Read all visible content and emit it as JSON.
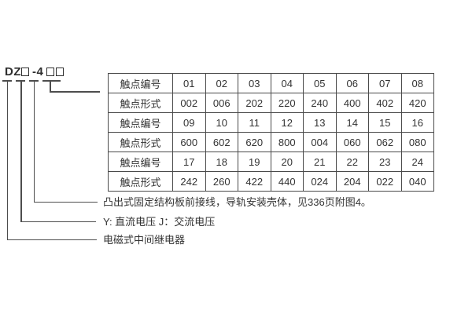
{
  "model": {
    "prefix": "DZ",
    "dash_number": "-4"
  },
  "table": {
    "rows": [
      {
        "label": "触点编号",
        "values": [
          "01",
          "02",
          "03",
          "04",
          "05",
          "06",
          "07",
          "08"
        ]
      },
      {
        "label": "触点形式",
        "values": [
          "002",
          "006",
          "202",
          "220",
          "240",
          "400",
          "402",
          "420"
        ]
      },
      {
        "label": "触点编号",
        "values": [
          "09",
          "10",
          "11",
          "12",
          "13",
          "14",
          "15",
          "16"
        ]
      },
      {
        "label": "触点形式",
        "values": [
          "600",
          "602",
          "620",
          "800",
          "004",
          "060",
          "062",
          "080"
        ]
      },
      {
        "label": "触点编号",
        "values": [
          "17",
          "18",
          "19",
          "20",
          "21",
          "22",
          "23",
          "24"
        ]
      },
      {
        "label": "触点形式",
        "values": [
          "242",
          "260",
          "422",
          "440",
          "024",
          "204",
          "022",
          "040"
        ]
      }
    ]
  },
  "annotations": [
    {
      "text": "凸出式固定结构板前接线，导轨安装壳体，见336页附图4。"
    },
    {
      "text": "Y: 直流电压  J：交流电压"
    },
    {
      "text": "电磁式中间继电器"
    }
  ],
  "colors": {
    "background": "#ffffff",
    "text": "#333333",
    "line": "#4d4d4d"
  }
}
